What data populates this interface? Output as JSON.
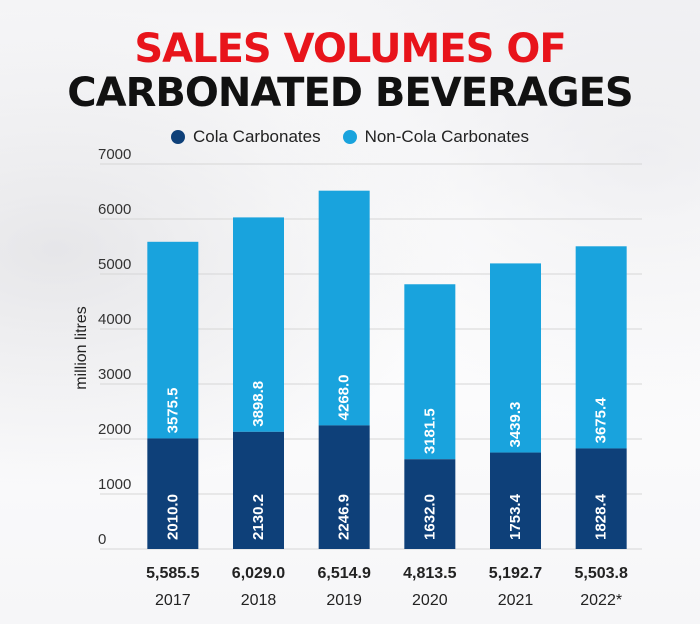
{
  "title_line1": "SALES VOLUMES OF",
  "title_line2": "CARBONATED BEVERAGES",
  "colors": {
    "title_accent": "#e8141b",
    "cola": "#0e4079",
    "non_cola": "#19a3dd"
  },
  "chart_data": {
    "type": "bar",
    "stacked": true,
    "categories": [
      "2017",
      "2018",
      "2019",
      "2020",
      "2021",
      "2022*"
    ],
    "series": [
      {
        "name": "Cola Carbonates",
        "values": [
          2010.0,
          2130.2,
          2246.9,
          1632.0,
          1753.4,
          1828.4
        ]
      },
      {
        "name": "Non-Cola Carbonates",
        "values": [
          3575.5,
          3898.8,
          4268.0,
          3181.5,
          3439.3,
          3675.4
        ]
      }
    ],
    "totals": [
      "5,585.5",
      "6,029.0",
      "6,514.9",
      "4,813.5",
      "5,192.7",
      "5,503.8"
    ],
    "value_labels": {
      "cola": [
        "2010.0",
        "2130.2",
        "2246.9",
        "1632.0",
        "1753.4",
        "1828.4"
      ],
      "non_cola": [
        "3575.5",
        "3898.8",
        "4268.0",
        "3181.5",
        "3439.3",
        "3675.4"
      ]
    },
    "ylabel": "million litres",
    "ylim": [
      0,
      7000
    ],
    "yticks": [
      0,
      1000,
      2000,
      3000,
      4000,
      5000,
      6000,
      7000
    ],
    "grid": true,
    "legend": "top-center"
  }
}
